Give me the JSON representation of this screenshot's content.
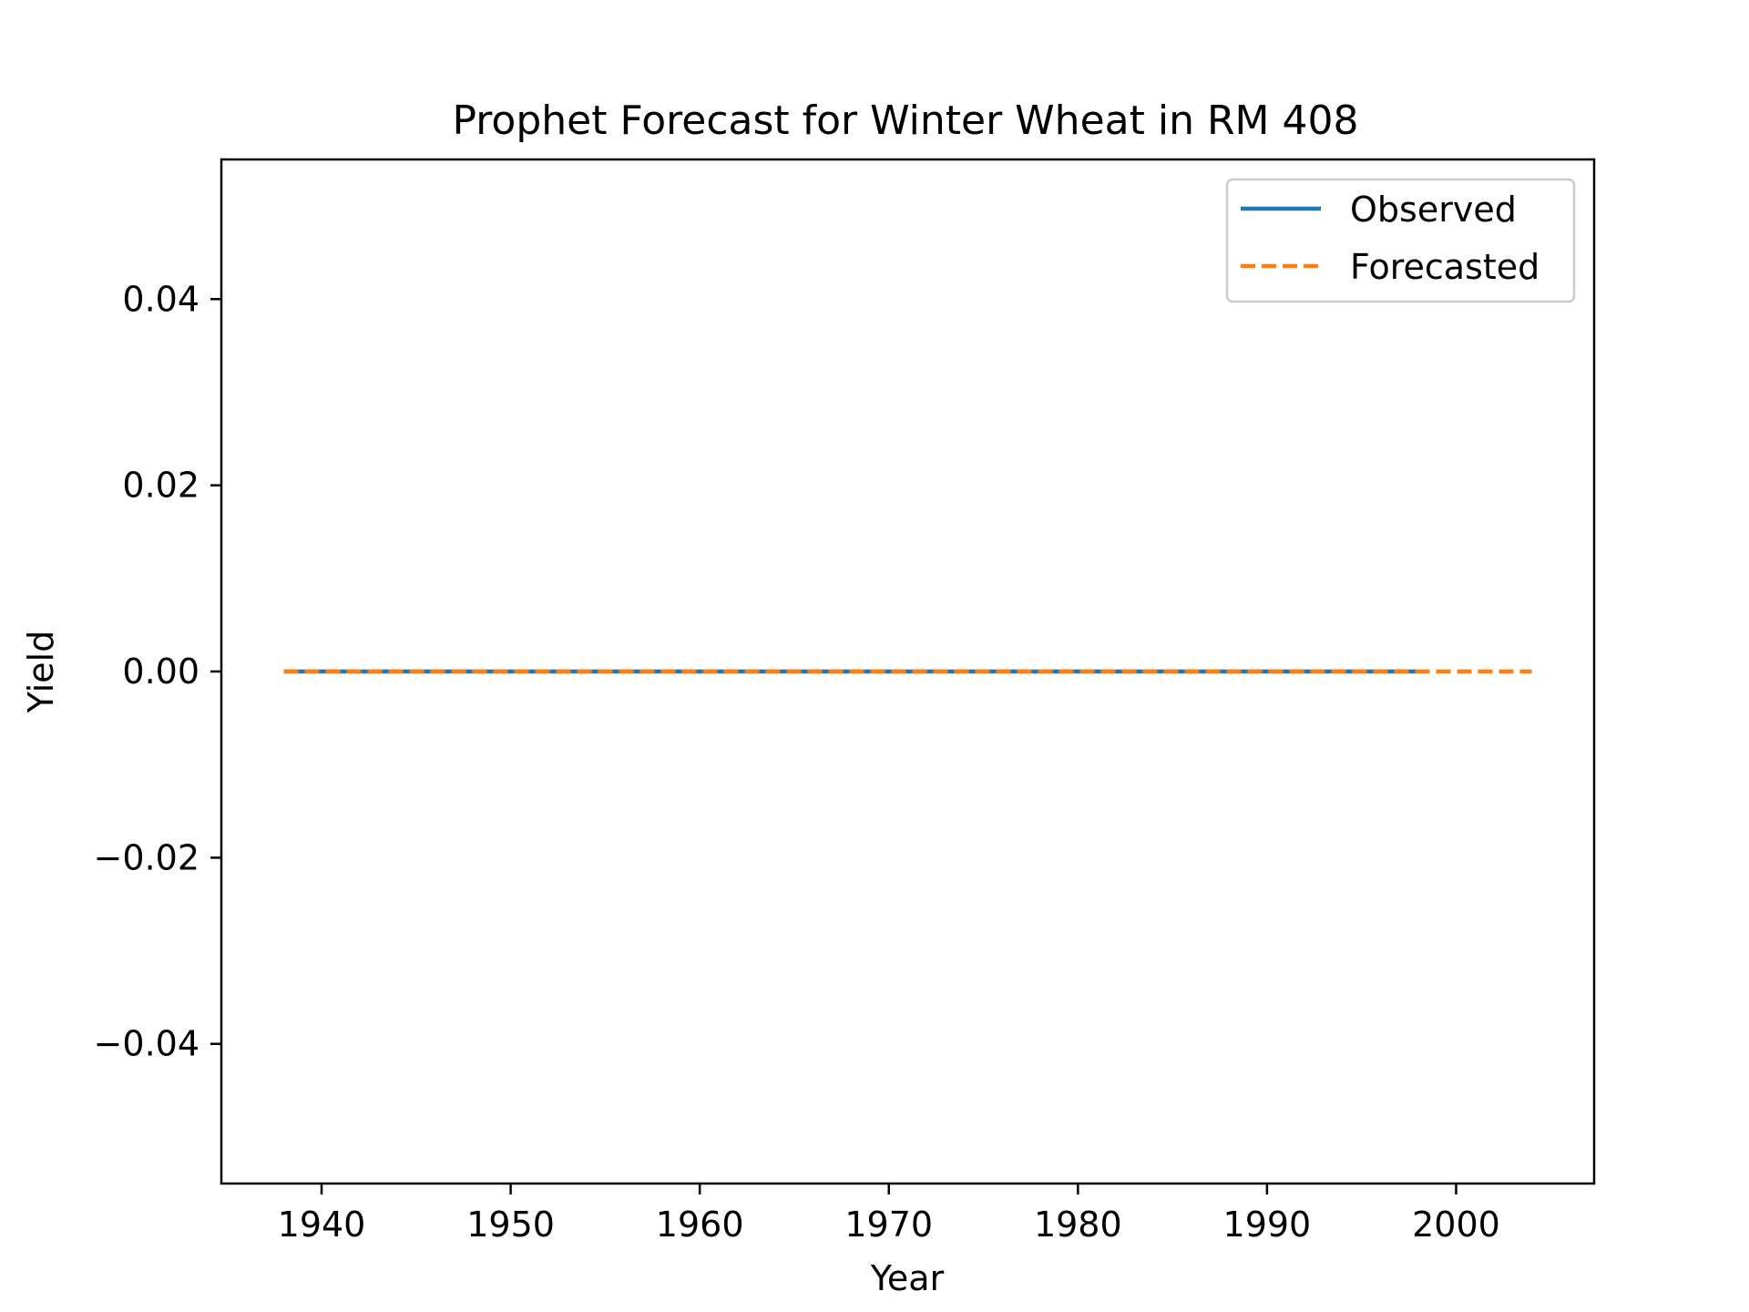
{
  "chart_data": {
    "type": "line",
    "title": "Prophet Forecast for Winter Wheat in RM 408",
    "xlabel": "Year",
    "ylabel": "Yield",
    "xlim": [
      1934.7,
      2007.3
    ],
    "ylim": [
      -0.055,
      0.055
    ],
    "x_ticks": [
      1940,
      1950,
      1960,
      1970,
      1980,
      1990,
      2000
    ],
    "x_tick_labels": [
      "1940",
      "1950",
      "1960",
      "1970",
      "1980",
      "1990",
      "2000"
    ],
    "y_ticks": [
      0.04,
      0.02,
      0.0,
      -0.02,
      -0.04
    ],
    "y_tick_labels": [
      "0.04",
      "0.02",
      "0.00",
      "−0.02",
      "−0.04"
    ],
    "grid": false,
    "legend_position": "top-right",
    "series": [
      {
        "name": "Observed",
        "color": "#1f77b4",
        "style": "solid",
        "x": [
          1938,
          1998
        ],
        "y": [
          0,
          0
        ]
      },
      {
        "name": "Forecasted",
        "color": "#ff7f0e",
        "style": "dashed",
        "x": [
          1938,
          2004
        ],
        "y": [
          0,
          0
        ]
      }
    ]
  }
}
